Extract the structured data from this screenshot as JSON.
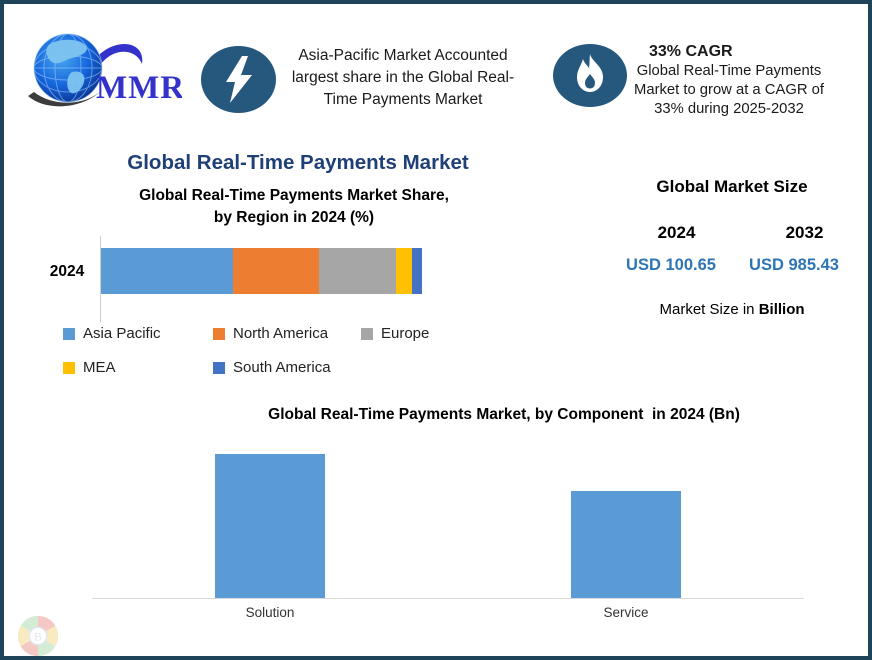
{
  "header": {
    "logo_text": "MMR",
    "highlight": {
      "lines": [
        "Asia-Pacific Market Accounted",
        "largest share in the Global Real-",
        "Time Payments Market"
      ]
    },
    "cagr": {
      "heading": "33% CAGR",
      "lines": [
        "Global Real-Time Payments",
        "Market to grow at a CAGR of",
        "33% during 2025-2032"
      ]
    }
  },
  "main_title": "Global Real-Time Payments Market",
  "region_chart": {
    "title_lines": [
      "Global Real-Time Payments Market Share,",
      "by Region in 2024 (%)"
    ],
    "category": "2024"
  },
  "market_size": {
    "title": "Global Market Size",
    "years": [
      "2024",
      "2032"
    ],
    "values": [
      "USD 100.65",
      "USD 985.43"
    ],
    "note_prefix": "Market Size in ",
    "note_bold": "Billion"
  },
  "component_chart": {
    "title": "Global Real-Time Payments Market, by Component  in 2024 (Bn)"
  },
  "watermark_letter": "B",
  "colors": {
    "border": "#1e4459",
    "badge": "#26587e",
    "title_blue": "#1f4077",
    "value_blue": "#2e75b6",
    "bar_blue": "#5b9bd5",
    "axis_gray": "#d9d9d9",
    "logo_blue": "#3333cc"
  },
  "chart_data": [
    {
      "type": "bar",
      "subtype": "stacked-horizontal",
      "title": "Global Real-Time Payments Market Share, by Region in 2024 (%)",
      "categories": [
        "2024"
      ],
      "series": [
        {
          "name": "Asia Pacific",
          "values": [
            41
          ],
          "color": "#5b9bd5"
        },
        {
          "name": "North America",
          "values": [
            27
          ],
          "color": "#ed7d31"
        },
        {
          "name": "Europe",
          "values": [
            24
          ],
          "color": "#a6a6a6"
        },
        {
          "name": "MEA",
          "values": [
            5
          ],
          "color": "#ffc000"
        },
        {
          "name": "South America",
          "values": [
            3
          ],
          "color": "#4472c4"
        }
      ],
      "values_estimated": true,
      "xlim": [
        0,
        100
      ],
      "legend_position": "bottom",
      "grid": false
    },
    {
      "type": "bar",
      "title": "Global Real-Time Payments Market, by Component  in 2024 (Bn)",
      "categories": [
        "Solution",
        "Service"
      ],
      "values": [
        58,
        43
      ],
      "values_estimated": true,
      "color": "#5b9bd5",
      "ylabel": "",
      "xlabel": "",
      "y_axis_shown": false,
      "grid": false
    }
  ]
}
